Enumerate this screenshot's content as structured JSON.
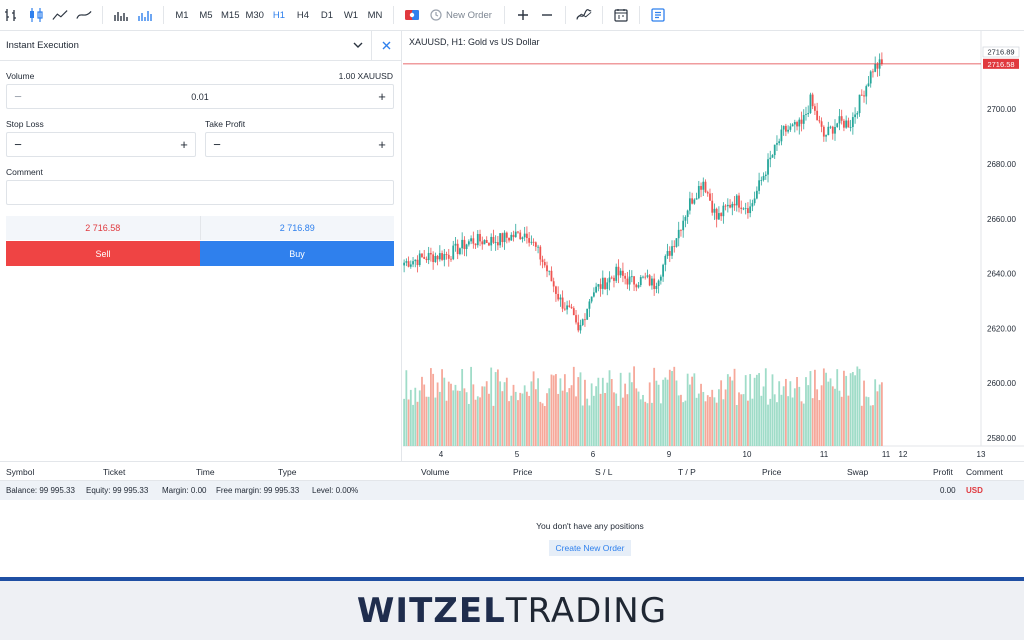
{
  "toolbar": {
    "timeframes": [
      "M1",
      "M5",
      "M15",
      "M30",
      "H1",
      "H4",
      "D1",
      "W1",
      "MN"
    ],
    "active_timeframe": "H1",
    "new_order_label": "New Order"
  },
  "order_panel": {
    "title": "Instant Execution",
    "volume_label": "Volume",
    "volume_hint": "1.00 XAUUSD",
    "volume_value": "0.01",
    "stop_loss_label": "Stop Loss",
    "take_profit_label": "Take Profit",
    "comment_label": "Comment",
    "sell_price": "2 716.58",
    "buy_price": "2 716.89",
    "sell_label": "Sell",
    "buy_label": "Buy"
  },
  "chart": {
    "title": "XAUUSD, H1: Gold vs US Dollar",
    "ask_label": "2716.89",
    "bid_label": "2716.58"
  },
  "chart_data": {
    "type": "candlestick",
    "symbol": "XAUUSD",
    "timeframe": "H1",
    "x_ticks": [
      "4",
      "5",
      "6",
      "9",
      "10",
      "11",
      "11",
      "12",
      "13"
    ],
    "y_ticks": [
      2580,
      2600,
      2620,
      2640,
      2660,
      2680,
      2700
    ],
    "ylim": [
      2577,
      2722
    ],
    "last_price": 2716.58,
    "ask": 2716.89,
    "anchors": [
      [
        0,
        2644
      ],
      [
        10,
        2646
      ],
      [
        20,
        2647
      ],
      [
        30,
        2652
      ],
      [
        40,
        2652
      ],
      [
        55,
        2655
      ],
      [
        63,
        2643
      ],
      [
        70,
        2630
      ],
      [
        75,
        2625
      ],
      [
        78,
        2618
      ],
      [
        84,
        2633
      ],
      [
        95,
        2640
      ],
      [
        102,
        2637
      ],
      [
        108,
        2638
      ],
      [
        112,
        2636
      ],
      [
        120,
        2650
      ],
      [
        128,
        2666
      ],
      [
        134,
        2674
      ],
      [
        140,
        2660
      ],
      [
        148,
        2667
      ],
      [
        155,
        2664
      ],
      [
        162,
        2678
      ],
      [
        170,
        2692
      ],
      [
        178,
        2694
      ],
      [
        182,
        2703
      ],
      [
        188,
        2690
      ],
      [
        194,
        2695
      ],
      [
        200,
        2695
      ],
      [
        210,
        2715
      ],
      [
        214,
        2716.58
      ]
    ]
  },
  "positions_table": {
    "headers": [
      "Symbol",
      "Ticket",
      "Time",
      "Type",
      "Volume",
      "Price",
      "S / L",
      "T / P",
      "Price",
      "Swap",
      "Profit",
      "Comment"
    ],
    "balance": "Balance: 99 995.33",
    "equity": "Equity: 99 995.33",
    "margin": "Margin: 0.00",
    "free_margin": "Free margin: 99 995.33",
    "level": "Level: 0.00%",
    "profit_total": "0.00",
    "currency": "USD",
    "empty_message": "You don't have any positions",
    "create_button": "Create New Order"
  },
  "brand": {
    "bold": "WITZEL",
    "light": "TRADING"
  },
  "colors": {
    "up": "#26a69a",
    "down": "#ef5350",
    "vol_up": "#9fdcc8",
    "vol_down": "#f6a89a",
    "accent": "#2f80ed",
    "sell": "#ef4444",
    "price_line": "#e0393e"
  }
}
